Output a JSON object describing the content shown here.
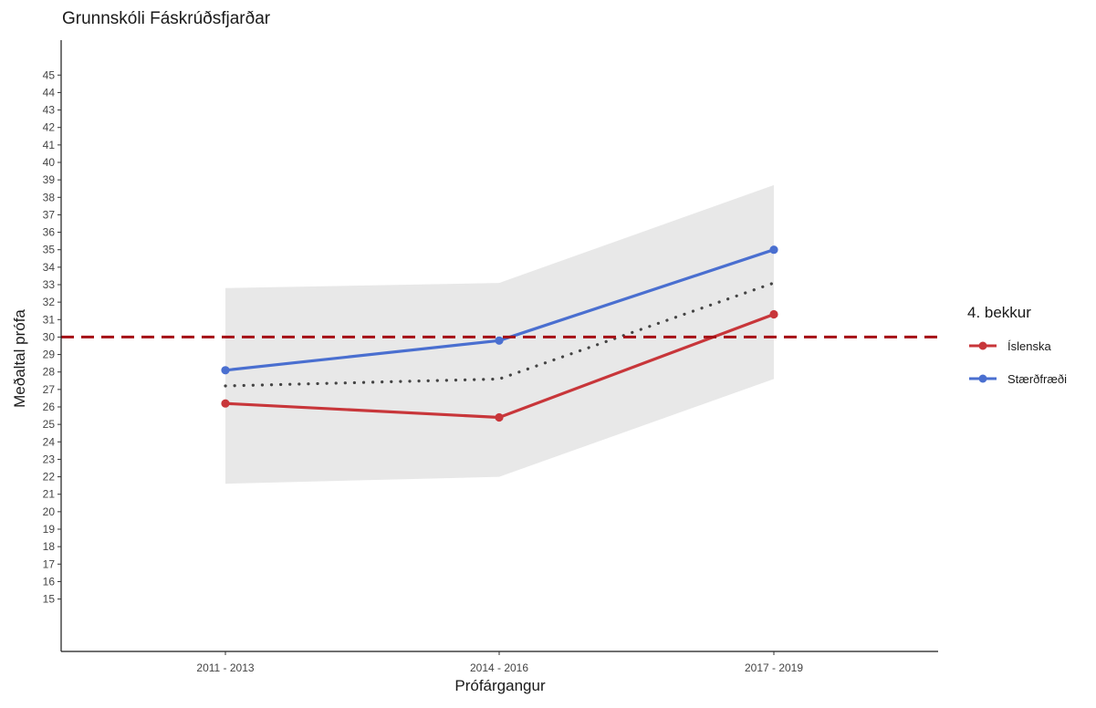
{
  "chart_data": {
    "type": "line",
    "title": "Grunnskóli Fáskrúðsfjarðar",
    "xlabel": "Prófárgangur",
    "ylabel": "Meðaltal prófa",
    "categories": [
      "2011 - 2013",
      "2014 - 2016",
      "2017 - 2019"
    ],
    "ylim": [
      12,
      47
    ],
    "yticks": [
      15,
      16,
      17,
      18,
      19,
      20,
      21,
      22,
      23,
      24,
      25,
      26,
      27,
      28,
      29,
      30,
      31,
      32,
      33,
      34,
      35,
      36,
      37,
      38,
      39,
      40,
      41,
      42,
      43,
      44,
      45
    ],
    "legend_title": "4. bekkur",
    "legend_position": "right",
    "grid": false,
    "series": [
      {
        "name": "Íslenska",
        "color": "#c8363a",
        "values": [
          26.2,
          25.4,
          31.3
        ]
      },
      {
        "name": "Stærðfræði",
        "color": "#4a6fd0",
        "values": [
          28.1,
          29.8,
          35.0
        ]
      }
    ],
    "band": {
      "color": "#e8e8e8",
      "lower": [
        21.6,
        22.0,
        27.6
      ],
      "upper": [
        32.8,
        33.1,
        38.7
      ]
    },
    "dotted_line": {
      "color": "#444444",
      "values": [
        27.2,
        27.6,
        33.1
      ]
    },
    "reference_line": {
      "value": 30,
      "color": "#a50f15"
    }
  }
}
